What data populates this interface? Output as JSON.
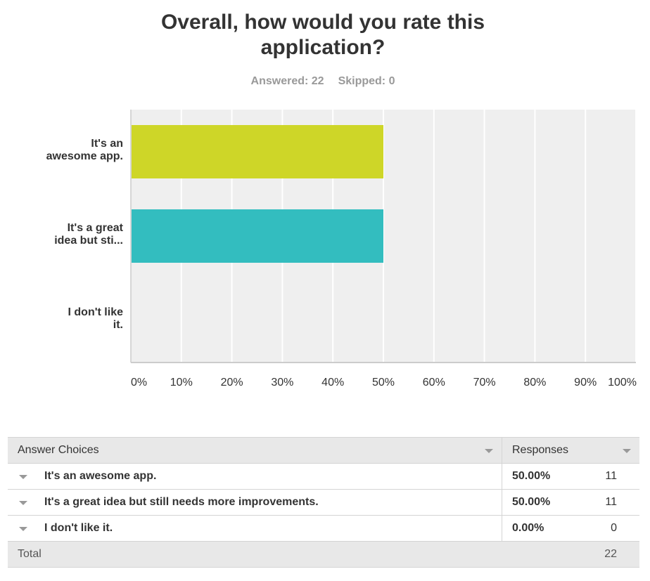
{
  "question": {
    "title_line1": "Overall, how would you rate this",
    "title_line2": "application?"
  },
  "summary": {
    "answered": "Answered: 22",
    "skipped": "Skipped: 0"
  },
  "colors": {
    "bar_1": "#ced628",
    "bar_2": "#33bdbf",
    "plot_bg": "#efefef",
    "grid": "#ffffff"
  },
  "chart_data": {
    "type": "bar",
    "orientation": "horizontal",
    "categories": [
      [
        "It's an",
        "awesome app."
      ],
      [
        "It's a great",
        "idea but sti..."
      ],
      [
        "I don't like",
        "it."
      ]
    ],
    "values": [
      50,
      50,
      0
    ],
    "xlim": [
      0,
      100
    ],
    "ticks": [
      "0%",
      "10%",
      "20%",
      "30%",
      "40%",
      "50%",
      "60%",
      "70%",
      "80%",
      "90%",
      "100%"
    ],
    "grid": true
  },
  "table": {
    "header_choices": "Answer Choices",
    "header_responses": "Responses",
    "rows": [
      {
        "label": "It's an awesome app.",
        "percent": "50.00%",
        "count": "11"
      },
      {
        "label": "It's a great idea but still needs more improvements.",
        "percent": "50.00%",
        "count": "11"
      },
      {
        "label": "I don't like it.",
        "percent": "0.00%",
        "count": "0"
      }
    ],
    "total_label": "Total",
    "total_count": "22"
  }
}
